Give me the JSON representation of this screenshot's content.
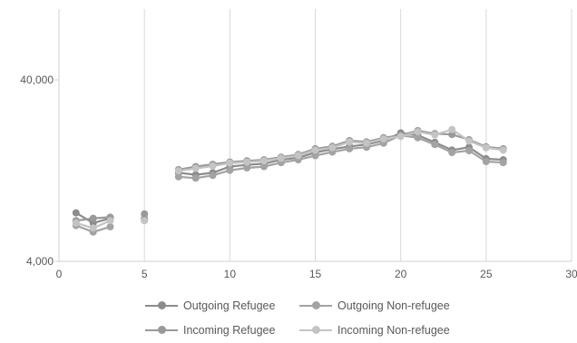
{
  "chart_data": {
    "type": "line",
    "title": "",
    "xlabel": "",
    "ylabel": "",
    "y_scale": "log",
    "xlim": [
      0,
      30
    ],
    "ylim": [
      4000,
      100000
    ],
    "x_ticks": [
      0,
      5,
      10,
      15,
      20,
      25,
      30
    ],
    "x_tick_labels": [
      "0",
      "5",
      "10",
      "15",
      "20",
      "25",
      "30"
    ],
    "y_ticks": [
      4000,
      40000
    ],
    "y_tick_labels": [
      "4,000",
      "40,000"
    ],
    "grid": false,
    "legend_position": "bottom",
    "series": [
      {
        "name": "Outgoing Refugee",
        "color": "#8c8c8c",
        "points": [
          [
            1,
            7400
          ],
          [
            2,
            6500
          ],
          [
            3,
            6900
          ],
          [
            5,
            6800
          ],
          [
            7,
            12300
          ],
          [
            8,
            12000
          ],
          [
            9,
            12300
          ],
          [
            10,
            13300
          ],
          [
            11,
            13600
          ],
          [
            12,
            13800
          ],
          [
            13,
            14500
          ],
          [
            14,
            14900
          ],
          [
            15,
            15900
          ],
          [
            16,
            16600
          ],
          [
            17,
            17200
          ],
          [
            18,
            17600
          ],
          [
            19,
            18500
          ],
          [
            20,
            20400
          ],
          [
            21,
            19800
          ],
          [
            22,
            18100
          ],
          [
            23,
            16400
          ],
          [
            24,
            17000
          ],
          [
            25,
            14700
          ],
          [
            26,
            14500
          ]
        ]
      },
      {
        "name": "Outgoing Non-refugee",
        "color": "#a3a3a3",
        "points": [
          [
            1,
            6300
          ],
          [
            2,
            5800
          ],
          [
            3,
            6200
          ],
          [
            5,
            6900
          ],
          [
            7,
            11700
          ],
          [
            8,
            11500
          ],
          [
            9,
            11900
          ],
          [
            10,
            12700
          ],
          [
            11,
            13100
          ],
          [
            12,
            13300
          ],
          [
            13,
            14000
          ],
          [
            14,
            14500
          ],
          [
            15,
            15300
          ],
          [
            16,
            16000
          ],
          [
            17,
            16700
          ],
          [
            18,
            17000
          ],
          [
            19,
            17900
          ],
          [
            20,
            19800
          ],
          [
            21,
            19200
          ],
          [
            22,
            17600
          ],
          [
            23,
            15900
          ],
          [
            24,
            16300
          ],
          [
            25,
            14200
          ],
          [
            26,
            14000
          ]
        ]
      },
      {
        "name": "Incoming Refugee",
        "color": "#999999",
        "points": [
          [
            1,
            6700
          ],
          [
            2,
            6900
          ],
          [
            3,
            7000
          ],
          [
            5,
            7300
          ],
          [
            7,
            12800
          ],
          [
            8,
            13300
          ],
          [
            9,
            13700
          ],
          [
            10,
            14100
          ],
          [
            11,
            14300
          ],
          [
            12,
            14500
          ],
          [
            13,
            15000
          ],
          [
            14,
            15500
          ],
          [
            15,
            16700
          ],
          [
            16,
            17200
          ],
          [
            17,
            18500
          ],
          [
            18,
            18200
          ],
          [
            19,
            19200
          ],
          [
            20,
            19800
          ],
          [
            21,
            21000
          ],
          [
            22,
            20200
          ],
          [
            23,
            20000
          ],
          [
            24,
            18700
          ],
          [
            25,
            17100
          ],
          [
            26,
            16700
          ]
        ]
      },
      {
        "name": "Incoming Non-refugee",
        "color": "#c4c4c4",
        "points": [
          [
            1,
            6500
          ],
          [
            2,
            6100
          ],
          [
            3,
            6700
          ],
          [
            5,
            6700
          ],
          [
            7,
            12600
          ],
          [
            8,
            13000
          ],
          [
            9,
            13400
          ],
          [
            10,
            13900
          ],
          [
            11,
            14100
          ],
          [
            12,
            14300
          ],
          [
            13,
            14800
          ],
          [
            14,
            15300
          ],
          [
            15,
            16400
          ],
          [
            16,
            16900
          ],
          [
            17,
            18200
          ],
          [
            18,
            17900
          ],
          [
            19,
            18900
          ],
          [
            20,
            19500
          ],
          [
            21,
            20700
          ],
          [
            22,
            19900
          ],
          [
            23,
            21300
          ],
          [
            24,
            18400
          ],
          [
            25,
            16900
          ],
          [
            26,
            16400
          ]
        ]
      }
    ],
    "legend": [
      {
        "name": "Outgoing Refugee"
      },
      {
        "name": "Outgoing Non-refugee"
      },
      {
        "name": "Incoming Refugee"
      },
      {
        "name": "Incoming Non-refugee"
      }
    ]
  }
}
